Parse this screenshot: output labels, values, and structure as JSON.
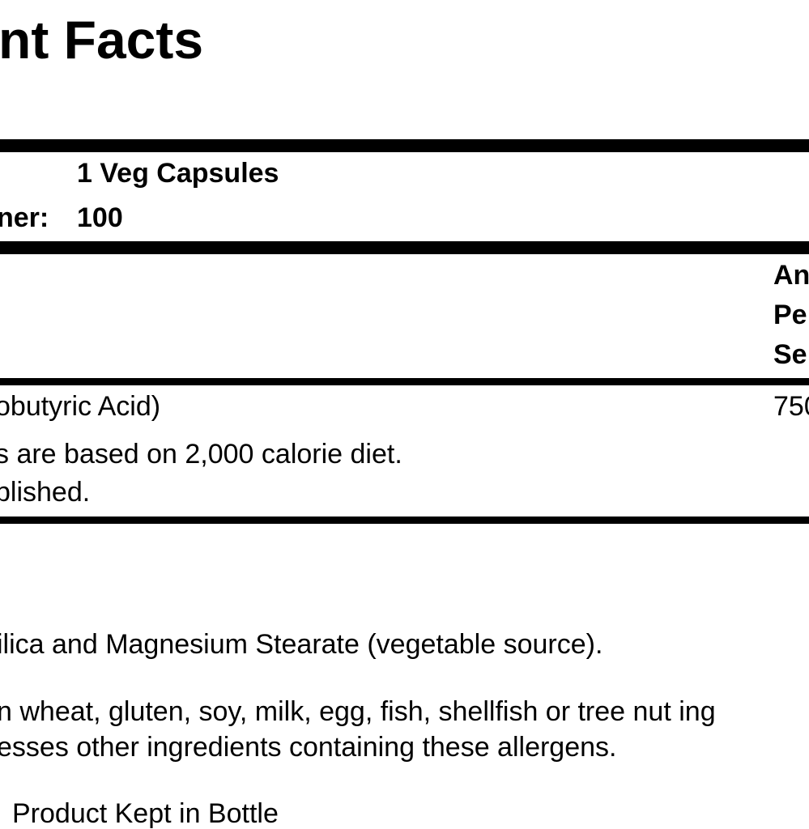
{
  "title": "nt Facts",
  "serving": {
    "size_value": "1 Veg Capsules",
    "per_container_label": "ner:",
    "per_container_value": "100"
  },
  "header": {
    "amount_lines": [
      "An",
      "Pe",
      "Se"
    ]
  },
  "ingredients": [
    {
      "name": "obutyric Acid)",
      "amount": "750"
    }
  ],
  "footnotes": [
    "s are based on 2,000 calorie diet.",
    "blished."
  ],
  "other_ingredients": "ilica and Magnesium Stearate (vegetable source).",
  "allergen_lines": [
    "n wheat, gluten, soy, milk, egg, fish, shellfish or tree nut ing",
    "esses other ingredients containing these allergens."
  ],
  "bottom_line": "Product Kept in Bottle"
}
